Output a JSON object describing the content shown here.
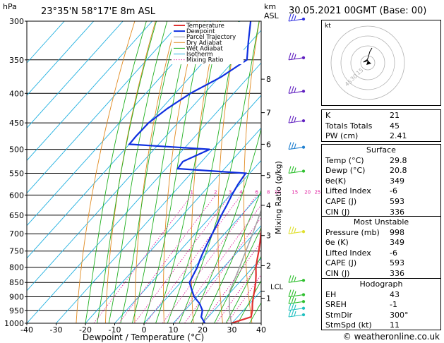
{
  "header": {
    "pressure_unit": "hPa",
    "location": "23°35'N  58°17'E  8m  ASL",
    "km_label": "km",
    "asl_label": "ASL",
    "datetime": "30.05.2021  00GMT  (Base: 00)"
  },
  "legend": [
    {
      "label": "Temperature",
      "color": "#e03030"
    },
    {
      "label": "Dewpoint",
      "color": "#1030e0"
    },
    {
      "label": "Parcel Trajectory",
      "color": "#a0a0a0"
    },
    {
      "label": "Dry Adiabat",
      "color": "#e08a20"
    },
    {
      "label": "Wet Adiabat",
      "color": "#20b020"
    },
    {
      "label": "Isotherm",
      "color": "#20b0e0"
    },
    {
      "label": "Mixing Ratio",
      "color": "#e020a0"
    }
  ],
  "chart_data": {
    "type": "line",
    "title": "",
    "xlabel": "Dewpoint / Temperature (°C)",
    "ylabel": "hPa",
    "y2label": "Mixing Ratio (g/kg)",
    "xlim": [
      -40,
      40
    ],
    "ylim": [
      1000,
      300
    ],
    "x_ticks": [
      -40,
      -30,
      -20,
      -10,
      0,
      10,
      20,
      30,
      40
    ],
    "p_ticks": [
      300,
      350,
      400,
      450,
      500,
      550,
      600,
      650,
      700,
      750,
      800,
      850,
      900,
      950,
      1000
    ],
    "km_ticks": [
      {
        "km": "1",
        "p": 905
      },
      {
        "km": "2",
        "p": 795
      },
      {
        "km": "3",
        "p": 705
      },
      {
        "km": "4",
        "p": 625
      },
      {
        "km": "5",
        "p": 555
      },
      {
        "km": "6",
        "p": 490
      },
      {
        "km": "7",
        "p": 432
      },
      {
        "km": "8",
        "p": 378
      }
    ],
    "lcl": {
      "label": "LCL",
      "p": 880
    },
    "mixing_ratio_labels": [
      "1",
      "2",
      "3",
      "4",
      "6",
      "8",
      "10",
      "15",
      "20",
      "25"
    ],
    "mixing_ratio_values": [
      1,
      2,
      3,
      4,
      6,
      8,
      10,
      15,
      20,
      25
    ],
    "series": [
      {
        "name": "Temperature",
        "color": "#e03030",
        "points": [
          [
            1000,
            29.8
          ],
          [
            975,
            34.6
          ],
          [
            950,
            33.0
          ],
          [
            925,
            31.0
          ],
          [
            900,
            29.2
          ],
          [
            875,
            27.5
          ],
          [
            850,
            25.6
          ],
          [
            825,
            23.4
          ],
          [
            800,
            21.0
          ],
          [
            775,
            19.0
          ],
          [
            750,
            17.0
          ],
          [
            725,
            14.8
          ],
          [
            700,
            12.4
          ],
          [
            675,
            10.0
          ],
          [
            650,
            7.6
          ],
          [
            625,
            5.0
          ],
          [
            600,
            2.4
          ],
          [
            575,
            0.0
          ],
          [
            550,
            -1.2
          ],
          [
            525,
            -4.0
          ],
          [
            500,
            -5.8
          ],
          [
            475,
            -7.2
          ],
          [
            450,
            -9.8
          ],
          [
            425,
            -12.8
          ],
          [
            400,
            -16.8
          ],
          [
            375,
            -21.2
          ],
          [
            350,
            -25.8
          ],
          [
            325,
            -31.2
          ],
          [
            300,
            -38.4
          ]
        ]
      },
      {
        "name": "Dewpoint",
        "color": "#1030e0",
        "points": [
          [
            1000,
            20.8
          ],
          [
            975,
            17.6
          ],
          [
            950,
            16.0
          ],
          [
            925,
            13.0
          ],
          [
            900,
            9.0
          ],
          [
            875,
            6.0
          ],
          [
            850,
            3.0
          ],
          [
            825,
            2.0
          ],
          [
            800,
            1.0
          ],
          [
            775,
            -0.5
          ],
          [
            750,
            -1.8
          ],
          [
            725,
            -3.0
          ],
          [
            700,
            -4.2
          ],
          [
            675,
            -5.4
          ],
          [
            650,
            -6.8
          ],
          [
            625,
            -8.0
          ],
          [
            600,
            -9.4
          ],
          [
            575,
            -10.6
          ],
          [
            550,
            -11.4
          ],
          [
            540,
            -36.0
          ],
          [
            525,
            -36.4
          ],
          [
            500,
            -31.0
          ],
          [
            490,
            -60.0
          ],
          [
            475,
            -60.2
          ],
          [
            450,
            -60.0
          ],
          [
            425,
            -58.0
          ],
          [
            400,
            -54.8
          ],
          [
            375,
            -49.4
          ],
          [
            350,
            -45.8
          ],
          [
            325,
            -51.0
          ],
          [
            300,
            -56.4
          ]
        ]
      },
      {
        "name": "Parcel Trajectory",
        "color": "#a0a0a0",
        "points": [
          [
            1000,
            29.8
          ],
          [
            950,
            25.2
          ],
          [
            900,
            21.0
          ],
          [
            880,
            19.4
          ],
          [
            850,
            18.0
          ],
          [
            800,
            15.4
          ],
          [
            750,
            12.6
          ],
          [
            700,
            9.6
          ],
          [
            650,
            6.2
          ],
          [
            600,
            2.4
          ],
          [
            550,
            -2.2
          ],
          [
            500,
            -7.6
          ],
          [
            450,
            -14.0
          ],
          [
            400,
            -21.8
          ],
          [
            350,
            -31.4
          ],
          [
            300,
            -43.0
          ]
        ]
      }
    ]
  },
  "winds_label": "wind barbs",
  "hodograph": {
    "label": "kt",
    "rings": [
      "45",
      "30",
      "15"
    ]
  },
  "indices": [
    {
      "label": "K",
      "value": "21"
    },
    {
      "label": "Totals Totals",
      "value": "45"
    },
    {
      "label": "PW (cm)",
      "value": "2.41"
    }
  ],
  "surface": {
    "title": "Surface",
    "rows": [
      {
        "label": "Temp (°C)",
        "value": "29.8"
      },
      {
        "label": "Dewp (°C)",
        "value": "20.8"
      },
      {
        "label": "θe(K)",
        "value": "349"
      },
      {
        "label": "Lifted Index",
        "value": "-6"
      },
      {
        "label": "CAPE (J)",
        "value": "593"
      },
      {
        "label": "CIN (J)",
        "value": "336"
      }
    ]
  },
  "most_unstable": {
    "title": "Most Unstable",
    "rows": [
      {
        "label": "Pressure (mb)",
        "value": "998"
      },
      {
        "label": "θe (K)",
        "value": "349"
      },
      {
        "label": "Lifted Index",
        "value": "-6"
      },
      {
        "label": "CAPE (J)",
        "value": "593"
      },
      {
        "label": "CIN (J)",
        "value": "336"
      }
    ]
  },
  "hodo_stats": {
    "title": "Hodograph",
    "rows": [
      {
        "label": "EH",
        "value": "43"
      },
      {
        "label": "SREH",
        "value": "-1"
      },
      {
        "label": "StmDir",
        "value": "300°"
      },
      {
        "label": "StmSpd (kt)",
        "value": "11"
      }
    ]
  },
  "copyright": "© weatheronline.co.uk"
}
